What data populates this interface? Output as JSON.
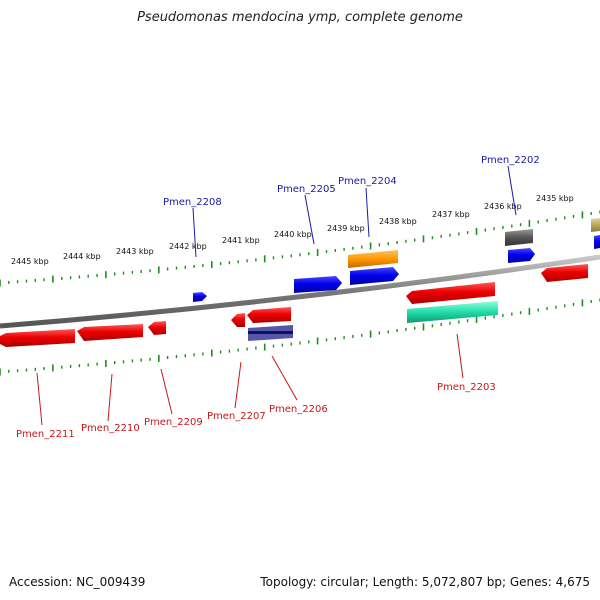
{
  "title": "Pseudomonas mendocina ymp, complete genome",
  "footer": {
    "accession": "Accession: NC_009439",
    "summary": "Topology: circular; Length: 5,072,807 bp; Genes: 4,675"
  },
  "kbp_ticks": [
    "2445 kbp",
    "2444 kbp",
    "2443 kbp",
    "2442 kbp",
    "2441 kbp",
    "2440 kbp",
    "2439 kbp",
    "2438 kbp",
    "2437 kbp",
    "2436 kbp",
    "2435 kbp"
  ],
  "gene_labels_top": [
    "Pmen_2208",
    "Pmen_2205",
    "Pmen_2204",
    "Pmen_2202"
  ],
  "gene_labels_bottom": [
    "Pmen_2211",
    "Pmen_2210",
    "Pmen_2209",
    "Pmen_2207",
    "Pmen_2206",
    "Pmen_2203"
  ],
  "colors": {
    "backbone": "#8a8a8a",
    "tick": "#1e8c1e",
    "forward_gene": "#0000ee",
    "reverse_gene": "#ee0000",
    "orange_gene": "#ff9900",
    "teal_gene": "#22ddaa",
    "gray_gene": "#555555",
    "khaki_gene": "#b8a860",
    "label_top": "#1a1aa8",
    "label_bottom": "#c81818"
  }
}
